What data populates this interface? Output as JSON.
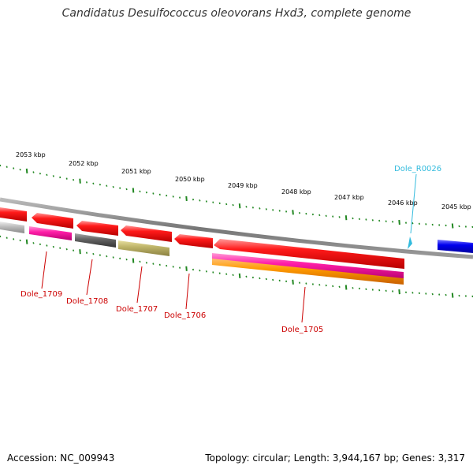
{
  "title": "Candidatus Desulfococcus oleovorans Hxd3, complete genome",
  "footer": {
    "accession": "Accession: NC_009943",
    "topology": "Topology: circular; Length: 3,944,167 bp; Genes: 3,317"
  },
  "scale_labels": [
    "2053 kbp",
    "2052 kbp",
    "2051 kbp",
    "2050 kbp",
    "2049 kbp",
    "2048 kbp",
    "2047 kbp",
    "2046 kbp",
    "2045 kbp"
  ],
  "gene_labels": [
    "Dole_1709",
    "Dole_1708",
    "Dole_1707",
    "Dole_1706",
    "Dole_1705",
    "Dole_R0026"
  ],
  "colors": {
    "gene_label": "#cc0000",
    "rna_label": "#33bbdd",
    "backbone": "#888888",
    "tick": "#228822"
  }
}
